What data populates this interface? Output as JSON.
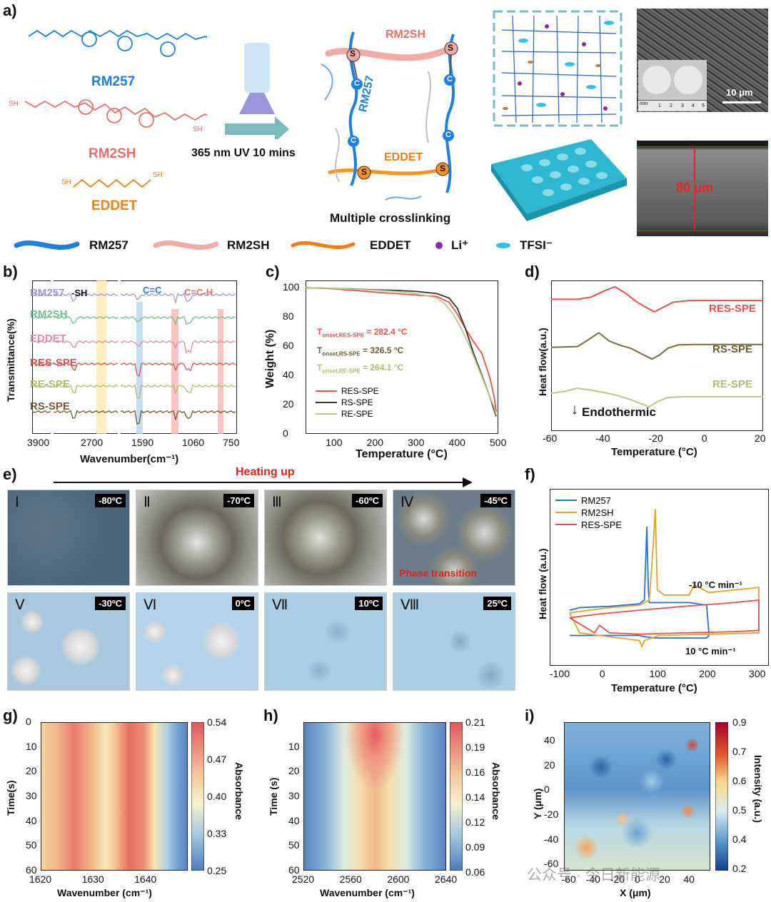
{
  "panel_labels": [
    "a)",
    "b)",
    "c)",
    "d)",
    "e)",
    "f)",
    "g)",
    "h)",
    "i)"
  ],
  "panel_a": {
    "monomers": [
      {
        "name": "RM257",
        "color": "#1f7fe0"
      },
      {
        "name": "RM2SH",
        "color": "#e5706b"
      },
      {
        "name": "EDDET",
        "color": "#f07e14"
      }
    ],
    "structure_labels": {
      "sh_left": "SH",
      "sh_right": "SH",
      "eddet_sh_left": "SH",
      "eddet_sh_right": "SH"
    },
    "uv_label": "365 nm UV 10 mins",
    "network": {
      "rm2sh": "RM2SH",
      "rm257": "RM257",
      "eddet": "EDDET",
      "s": "S",
      "c": "C",
      "caption": "Multiple crosslinking"
    },
    "sem": {
      "scale": "10 μm",
      "ruler_unit": "mm",
      "ruler_ticks": [
        "1",
        "2",
        "3",
        "4",
        "5"
      ]
    },
    "thickness": "80 μm",
    "legend": [
      {
        "label": "RM257",
        "color": "#1f7fe0"
      },
      {
        "label": "RM2SH",
        "color": "#f2a8a2"
      },
      {
        "label": "EDDET",
        "color": "#f07e14"
      },
      {
        "label": "Li⁺",
        "color": "#8a2aa8"
      },
      {
        "label": "TFSI⁻",
        "color": "#35c0e8"
      }
    ]
  },
  "panel_b": {
    "ylabel": "Transmittance(%)",
    "xlabel": "Wavenumber(cm⁻¹)",
    "ticks": [
      "3900",
      "2700",
      "1590",
      "1060",
      "750"
    ],
    "annotations": [
      "-SH",
      "C=C",
      "C=C-H"
    ],
    "series": [
      {
        "name": "RM257",
        "color": "#9a9ad8"
      },
      {
        "name": "RM2SH",
        "color": "#6fbf8f"
      },
      {
        "name": "EDDET",
        "color": "#e38aa6"
      },
      {
        "name": "RES-SPE",
        "color": "#d9534f"
      },
      {
        "name": "RE-SPE",
        "color": "#a9bf6a"
      },
      {
        "name": "RS-SPE",
        "color": "#6b5a33"
      }
    ]
  },
  "chart_data": [
    {
      "type": "line",
      "panel": "c",
      "title": "",
      "xlabel": "Temperature (°C)",
      "ylabel": "Weight (%)",
      "xlim": [
        30,
        500
      ],
      "ylim": [
        0,
        105
      ],
      "xticks": [
        100,
        200,
        300,
        400,
        500
      ],
      "yticks": [
        0,
        20,
        40,
        60,
        80,
        100
      ],
      "annotations": [
        "T",
        "onset,RES-SPE",
        " = 282.4 °C",
        "onset,RS-SPE",
        " = 326.5 °C",
        "onset,RE-SPE",
        " = 264.1 °C"
      ],
      "series": [
        {
          "name": "RES-SPE",
          "color": "#e5534b",
          "x": [
            30,
            100,
            200,
            250,
            300,
            350,
            380,
            400,
            420,
            440,
            460,
            480,
            490,
            495
          ],
          "y": [
            100,
            99.3,
            97,
            96,
            95,
            94,
            90,
            82,
            72,
            63,
            55,
            38,
            25,
            15
          ]
        },
        {
          "name": "RS-SPE",
          "color": "#3a3320",
          "x": [
            30,
            100,
            200,
            250,
            300,
            350,
            380,
            400,
            420,
            440,
            460,
            480,
            490,
            495
          ],
          "y": [
            100,
            99.6,
            98.6,
            98.2,
            97.5,
            96,
            93,
            86,
            72,
            55,
            40,
            25,
            16,
            12
          ]
        },
        {
          "name": "RE-SPE",
          "color": "#b7c88a",
          "x": [
            30,
            100,
            200,
            250,
            300,
            350,
            370,
            390,
            410,
            430,
            450,
            470,
            490,
            495
          ],
          "y": [
            100,
            99.6,
            98.3,
            97.5,
            96,
            93,
            89,
            82,
            72,
            60,
            46,
            32,
            18,
            13
          ]
        }
      ]
    },
    {
      "type": "line",
      "panel": "d",
      "xlabel": "Temperature (°C)",
      "ylabel": "Heat flow(a.u.)",
      "xlim": [
        -60,
        20
      ],
      "xticks": [
        -60,
        -40,
        -20,
        0,
        20
      ],
      "annotation": "Endothermic",
      "series": [
        {
          "name": "RES-SPE",
          "color": "#e5534b",
          "x": [
            -60,
            -50,
            -45,
            -40,
            -36,
            -32,
            -28,
            -24,
            -21,
            -18,
            -14,
            -8,
            0,
            10,
            20
          ],
          "y": [
            3.15,
            3.15,
            3.2,
            3.35,
            3.45,
            3.3,
            3.1,
            2.95,
            2.85,
            2.95,
            3.08,
            3.12,
            3.12,
            3.12,
            3.12
          ]
        },
        {
          "name": "RS-SPE",
          "color": "#7b6a3f",
          "x": [
            -60,
            -50,
            -46,
            -42,
            -38,
            -34,
            -30,
            -26,
            -22,
            -19,
            -16,
            -12,
            -6,
            0,
            10,
            20
          ],
          "y": [
            2.0,
            2.02,
            2.18,
            2.35,
            2.15,
            2.05,
            1.98,
            1.85,
            1.72,
            1.82,
            1.98,
            2.06,
            2.07,
            2.07,
            2.07,
            2.07
          ]
        },
        {
          "name": "RE-SPE",
          "color": "#b7c88a",
          "x": [
            -60,
            -55,
            -50,
            -45,
            -40,
            -35,
            -30,
            -26,
            -23,
            -20,
            -16,
            -10,
            0,
            10,
            20
          ],
          "y": [
            0.9,
            0.95,
            1.02,
            0.98,
            0.92,
            0.85,
            0.75,
            0.65,
            0.58,
            0.7,
            0.8,
            0.82,
            0.82,
            0.82,
            0.82
          ]
        }
      ]
    },
    {
      "type": "line",
      "panel": "f",
      "xlabel": "Temperature (°C)",
      "ylabel": "Heat flow (a.u.)",
      "xlim": [
        -120,
        320
      ],
      "xticks": [
        -100,
        0,
        100,
        200,
        300
      ],
      "annotations": [
        "-10 °C min⁻¹",
        "10 °C min⁻¹"
      ],
      "series": [
        {
          "name": "RM257",
          "color": "#2a6fd6",
          "x": [
            -80,
            -60,
            0,
            60,
            70,
            75,
            78,
            80,
            120,
            160,
            195,
            200,
            195,
            130,
            90,
            70,
            60,
            0,
            -50,
            -80
          ],
          "y": [
            2.2,
            2.3,
            2.35,
            2.45,
            2.6,
            5.5,
            3.0,
            2.5,
            2.5,
            2.5,
            2.4,
            1.2,
            1.1,
            1.1,
            1.1,
            1.15,
            1.2,
            1.2,
            1.2,
            1.2
          ]
        },
        {
          "name": "RM2SH",
          "color": "#e0a526",
          "x": [
            -80,
            -40,
            0,
            60,
            80,
            88,
            92,
            96,
            110,
            160,
            170,
            200,
            300,
            300,
            200,
            100,
            70,
            65,
            60,
            20,
            -20,
            -60,
            -80
          ],
          "y": [
            2.1,
            2.2,
            2.3,
            2.4,
            2.6,
            4.8,
            6.2,
            3.0,
            2.8,
            2.8,
            3.2,
            2.9,
            3.1,
            1.3,
            1.25,
            1.2,
            1.0,
            0.75,
            1.0,
            1.1,
            1.2,
            1.3,
            2.1
          ]
        },
        {
          "name": "RES-SPE",
          "color": "#e5534b",
          "x": [
            -80,
            -20,
            60,
            150,
            250,
            300,
            300,
            250,
            150,
            60,
            0,
            -20,
            -30,
            -80
          ],
          "y": [
            1.9,
            2.05,
            2.2,
            2.35,
            2.5,
            2.6,
            1.4,
            1.35,
            1.3,
            1.25,
            1.3,
            1.6,
            1.3,
            1.9
          ]
        }
      ]
    },
    {
      "type": "heatmap",
      "panel": "g",
      "xlabel": "Wavenumber (cm⁻¹)",
      "ylabel": "Time(s)",
      "colorbar_label": "Absorbance",
      "xlim": [
        1620,
        1648
      ],
      "ylim": [
        0,
        60
      ],
      "xticks": [
        1620,
        1630,
        1640
      ],
      "yticks": [
        0,
        10,
        20,
        30,
        40,
        50,
        60
      ],
      "colorbar_ticks": [
        0.54,
        0.47,
        0.4,
        0.33,
        0.25
      ]
    },
    {
      "type": "heatmap",
      "panel": "h",
      "xlabel": "Wavenumber (cm⁻¹)",
      "ylabel": "Time (s)",
      "colorbar_label": "Absorbance",
      "xlim": [
        2520,
        2640
      ],
      "ylim": [
        0,
        60
      ],
      "xticks": [
        2520,
        2560,
        2600,
        2640
      ],
      "yticks": [
        10,
        20,
        30,
        40,
        50,
        60
      ],
      "colorbar_ticks": [
        0.21,
        0.19,
        0.16,
        0.14,
        0.12,
        0.09,
        0.06
      ]
    },
    {
      "type": "heatmap",
      "panel": "i",
      "xlabel": "X (μm)",
      "ylabel": "Y (μm)",
      "colorbar_label": "Intensity (a.u.)",
      "xlim": [
        -65,
        55
      ],
      "ylim": [
        -65,
        55
      ],
      "xticks": [
        -60,
        -40,
        -20,
        0,
        20,
        40
      ],
      "yticks": [
        40,
        20,
        0,
        -20,
        -40,
        -60
      ],
      "colorbar_ticks": [
        0.9,
        0.7,
        0.6,
        0.5,
        0.4,
        0.2
      ]
    }
  ],
  "panel_e": {
    "arrow_label": "Heating up",
    "images": [
      {
        "num": "Ⅰ",
        "temp": "-80ºC"
      },
      {
        "num": "Ⅱ",
        "temp": "-70ºC"
      },
      {
        "num": "Ⅲ",
        "temp": "-60ºC"
      },
      {
        "num": "Ⅳ",
        "temp": "-45ºC"
      },
      {
        "num": "Ⅴ",
        "temp": "-30ºC"
      },
      {
        "num": "Ⅵ",
        "temp": "0ºC"
      },
      {
        "num": "Ⅶ",
        "temp": "10ºC"
      },
      {
        "num": "Ⅷ",
        "temp": "25ºC"
      }
    ],
    "phase_label": "Phase transition"
  },
  "watermark": "公众号 · 今日新能源"
}
